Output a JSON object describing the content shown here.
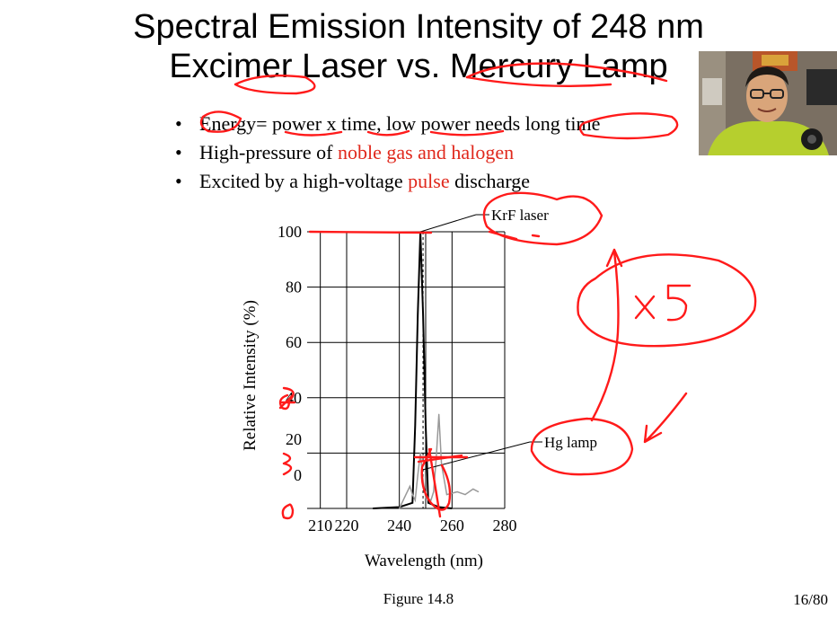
{
  "title": {
    "line1": "Spectral Emission Intensity of 248 nm",
    "line2": "Excimer Laser vs. Mercury Lamp"
  },
  "bullets": [
    {
      "marker": "•",
      "text": "Energy= power x time, low power needs long time",
      "highlight": ""
    },
    {
      "marker": "•",
      "text": "High-pressure of ",
      "highlight": "noble gas and halogen"
    },
    {
      "marker": "•",
      "text": "Excited by a high-voltage ",
      "highlight": "pulse",
      "tail": " discharge"
    }
  ],
  "chart_data": {
    "type": "line",
    "xlabel": "Wavelength (nm)",
    "ylabel": "Relative Intensity (%)",
    "xlim": [
      205,
      280
    ],
    "ylim": [
      0,
      100
    ],
    "x_ticks": [
      "210",
      "220",
      "240",
      "260",
      "280"
    ],
    "y_ticks": [
      "100",
      "80",
      "60",
      "40",
      "20",
      "0"
    ],
    "grid": true,
    "series": [
      {
        "name": "KrF laser",
        "color": "#000000",
        "x": [
          230,
          240,
          245,
          246,
          247,
          248,
          249,
          250,
          251,
          255,
          260
        ],
        "y": [
          0,
          0.5,
          2,
          30,
          70,
          100,
          70,
          30,
          2,
          0.5,
          0
        ]
      },
      {
        "name": "Hg lamp",
        "color": "#999999",
        "x": [
          240,
          242,
          244,
          245,
          246,
          247,
          248,
          249,
          250,
          252,
          253,
          254,
          255,
          256,
          258,
          262,
          265,
          268,
          270
        ],
        "y": [
          0,
          4,
          8,
          5,
          3,
          12,
          20,
          10,
          4,
          3,
          6,
          18,
          34,
          16,
          5,
          6,
          5,
          7,
          6
        ]
      }
    ],
    "annotations": [
      "KrF laser",
      "Hg lamp"
    ]
  },
  "figure_caption": "Figure 14.8",
  "page_number": "16/80",
  "handwritten": {
    "times_five": "x 5",
    "left_marks": [
      "40",
      "20",
      "0"
    ]
  },
  "colors": {
    "accent_red": "#e0281c",
    "ink_red": "#ff1a1a"
  }
}
